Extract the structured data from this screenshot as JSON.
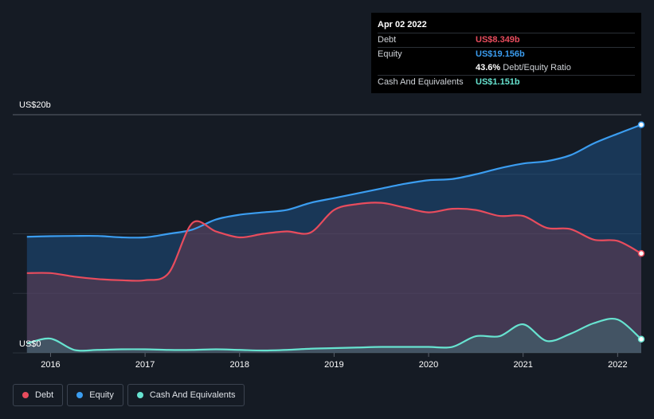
{
  "tooltip": {
    "date": "Apr 02 2022",
    "rows": [
      {
        "label": "Debt",
        "value": "US$8.349b",
        "color": "#e84c5d"
      },
      {
        "label": "Equity",
        "value": "US$19.156b",
        "color": "#3b9df0"
      },
      {
        "label": "",
        "value": "43.6%",
        "suffix": "Debt/Equity Ratio",
        "color": "#ffffff"
      },
      {
        "label": "Cash And Equivalents",
        "value": "US$1.151b",
        "color": "#67e3d0"
      }
    ]
  },
  "legend": [
    {
      "label": "Debt",
      "color": "#e84c5d"
    },
    {
      "label": "Equity",
      "color": "#3b9df0"
    },
    {
      "label": "Cash And Equivalents",
      "color": "#67e3d0"
    }
  ],
  "chart_data": {
    "type": "area",
    "title": "",
    "xlabel": "",
    "ylabel": "",
    "y_top_label": "US$20b",
    "y_bottom_label": "US$0",
    "ylim": [
      0,
      20
    ],
    "xlim": [
      2015.6,
      2022.25
    ],
    "x_ticks": [
      2016,
      2017,
      2018,
      2019,
      2020,
      2021,
      2022
    ],
    "x_tick_labels": [
      "2016",
      "2017",
      "2018",
      "2019",
      "2020",
      "2021",
      "2022"
    ],
    "grid": true,
    "series": [
      {
        "name": "Equity",
        "color": "#3b9df0",
        "x": [
          2015.75,
          2016.0,
          2016.25,
          2016.5,
          2016.75,
          2017.0,
          2017.25,
          2017.5,
          2017.75,
          2018.0,
          2018.25,
          2018.5,
          2018.75,
          2019.0,
          2019.25,
          2019.5,
          2019.75,
          2020.0,
          2020.25,
          2020.5,
          2020.75,
          2021.0,
          2021.25,
          2021.5,
          2021.75,
          2022.0,
          2022.25
        ],
        "values": [
          9.75,
          9.8,
          9.82,
          9.82,
          9.7,
          9.7,
          10.0,
          10.35,
          11.2,
          11.6,
          11.8,
          12.0,
          12.6,
          13.0,
          13.4,
          13.8,
          14.2,
          14.5,
          14.6,
          15.0,
          15.5,
          15.9,
          16.1,
          16.6,
          17.6,
          18.4,
          19.156
        ]
      },
      {
        "name": "Debt",
        "color": "#e84c5d",
        "x": [
          2015.75,
          2016.0,
          2016.25,
          2016.5,
          2016.75,
          2017.0,
          2017.25,
          2017.5,
          2017.75,
          2018.0,
          2018.25,
          2018.5,
          2018.75,
          2019.0,
          2019.25,
          2019.5,
          2019.75,
          2020.0,
          2020.25,
          2020.5,
          2020.75,
          2021.0,
          2021.25,
          2021.5,
          2021.75,
          2022.0,
          2022.25
        ],
        "values": [
          6.7,
          6.7,
          6.4,
          6.2,
          6.1,
          6.1,
          6.7,
          10.9,
          10.2,
          9.7,
          10.0,
          10.2,
          10.1,
          12.0,
          12.5,
          12.6,
          12.2,
          11.8,
          12.1,
          12.0,
          11.5,
          11.5,
          10.5,
          10.4,
          9.5,
          9.4,
          8.349
        ]
      },
      {
        "name": "Cash And Equivalents",
        "color": "#67e3d0",
        "x": [
          2015.75,
          2016.0,
          2016.25,
          2016.5,
          2016.75,
          2017.0,
          2017.25,
          2017.5,
          2017.75,
          2018.0,
          2018.25,
          2018.5,
          2018.75,
          2019.0,
          2019.25,
          2019.5,
          2019.75,
          2020.0,
          2020.25,
          2020.5,
          2020.75,
          2021.0,
          2021.25,
          2021.5,
          2021.75,
          2022.0,
          2022.25
        ],
        "values": [
          0.8,
          1.2,
          0.25,
          0.25,
          0.3,
          0.3,
          0.25,
          0.25,
          0.3,
          0.25,
          0.2,
          0.25,
          0.35,
          0.4,
          0.45,
          0.5,
          0.5,
          0.5,
          0.5,
          1.4,
          1.4,
          2.4,
          1.0,
          1.6,
          2.5,
          2.8,
          1.151
        ]
      }
    ],
    "latest": {
      "date": "Apr 02 2022",
      "debt": 8.349,
      "equity": 19.156,
      "cash": 1.151,
      "debt_equity_ratio": "43.6%"
    }
  }
}
